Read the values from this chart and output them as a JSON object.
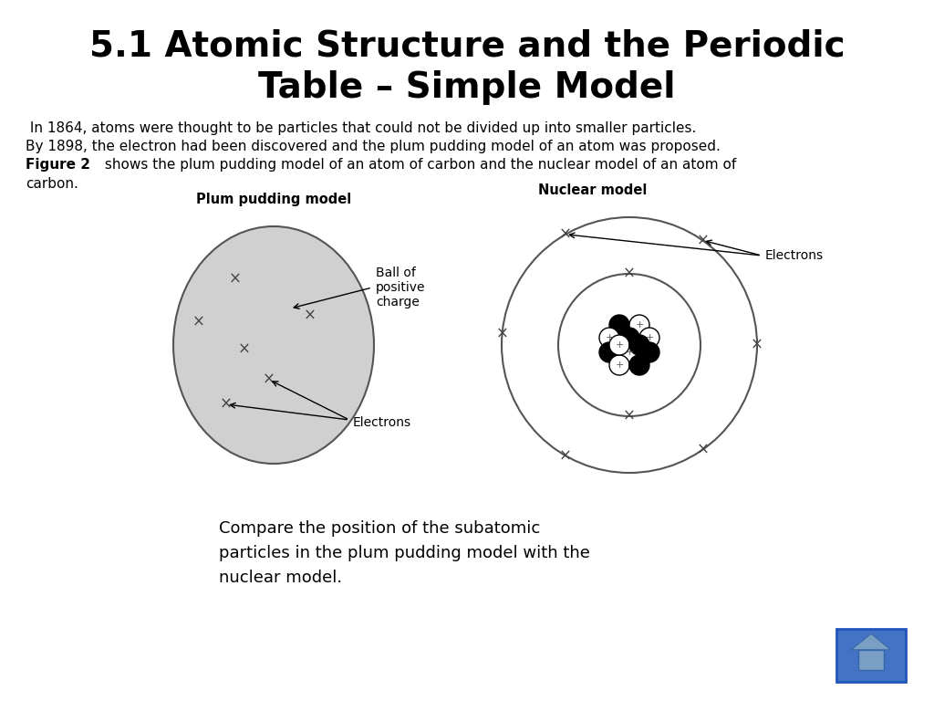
{
  "title_line1": "5.1 Atomic Structure and the Periodic",
  "title_line2": "Table – Simple Model",
  "title_fontsize": 28,
  "body_fontsize": 11,
  "plum_label": "Plum pudding model",
  "nuclear_label": "Nuclear model",
  "ball_label": "Ball of\npositive\ncharge",
  "electrons_label_plum": "Electrons",
  "electrons_label_nuclear": "Electrons",
  "bottom_text": "Compare the position of the subatomic\nparticles in the plum pudding model with the\nnuclear model.",
  "bg_color": "#ffffff",
  "plum_fill": "#d0d0d0",
  "home_bg": "#4472c4",
  "home_roof": "#7a9fc4",
  "diagram_edge": "#555555"
}
